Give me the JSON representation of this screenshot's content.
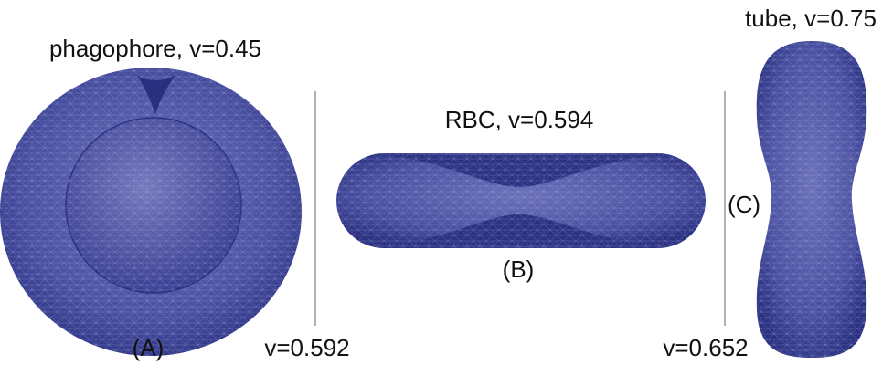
{
  "panels": [
    {
      "title": "phagophore, v=0.45",
      "label": "(A)"
    },
    {
      "title": "RBC, v=0.594",
      "label": "(B)"
    },
    {
      "title": "tube, v=0.75",
      "label": "(C)"
    }
  ],
  "dividers": [
    {
      "label": "v=0.592"
    },
    {
      "label": "v=0.652"
    }
  ]
}
